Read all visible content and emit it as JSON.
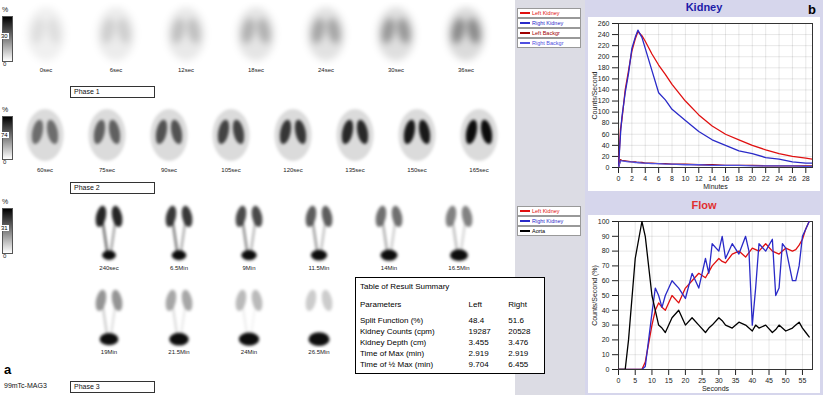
{
  "panel_a": {
    "label": "a",
    "tracer": "99mTc-MAG3",
    "phases": [
      {
        "name": "Phase 1",
        "scale": {
          "unit": "%",
          "max": 30,
          "min": 0
        },
        "frames": [
          "0sec",
          "6sec",
          "12sec",
          "18sec",
          "24sec",
          "30sec",
          "36sec"
        ]
      },
      {
        "name": "Phase 2",
        "scale": {
          "unit": "%",
          "max": 74,
          "min": 0
        },
        "frames": [
          "60sec",
          "75sec",
          "90sec",
          "105sec",
          "120sec",
          "135sec",
          "150sec",
          "165sec"
        ]
      },
      {
        "name": "Phase 3",
        "scale": {
          "unit": "%",
          "max": 31,
          "min": 0
        },
        "frames": [
          "240sec",
          "6.5Min",
          "9Min",
          "11.5Min",
          "14Min",
          "16.5Min",
          "19Min",
          "21.5Min",
          "24Min",
          "26.5Min"
        ]
      }
    ]
  },
  "panel_b": {
    "label": "b"
  },
  "table": {
    "title": "Table of Result Summary",
    "columns": [
      "Parameters",
      "Left",
      "Right"
    ],
    "rows": [
      [
        "Split Function (%)",
        "48.4",
        "51.6"
      ],
      [
        "Kidney Counts (cpm)",
        "19287",
        "20528"
      ],
      [
        "Kidney Depth (cm)",
        "3.455",
        "3.476"
      ],
      [
        "Time of Max (min)",
        "2.919",
        "2.919"
      ],
      [
        "Time of ½ Max (min)",
        "9.704",
        "6.455"
      ]
    ]
  },
  "chart_data": [
    {
      "type": "line",
      "title": "Kidney",
      "xlabel": "Minutes",
      "ylabel": "Counts/Second",
      "x": [
        0,
        0.3,
        0.5,
        1,
        1.5,
        2,
        2.5,
        2.9,
        3.5,
        4,
        5,
        6,
        7,
        8,
        10,
        12,
        14,
        16,
        18,
        20,
        22,
        24,
        26,
        28,
        29
      ],
      "series": [
        {
          "name": "Left Kidney",
          "color": "#e01010",
          "values": [
            0,
            70,
            85,
            140,
            175,
            210,
            232,
            245,
            238,
            228,
            205,
            185,
            168,
            150,
            120,
            95,
            75,
            60,
            50,
            40,
            32,
            25,
            20,
            17,
            15
          ]
        },
        {
          "name": "Right Kidney",
          "color": "#2a2ac8",
          "values": [
            0,
            60,
            90,
            135,
            170,
            215,
            235,
            248,
            235,
            215,
            175,
            135,
            122,
            105,
            85,
            65,
            50,
            40,
            30,
            25,
            18,
            15,
            10,
            8,
            8
          ]
        },
        {
          "name": "Left Backgr",
          "color": "#a00000",
          "values": [
            0,
            14,
            13,
            12,
            11,
            10,
            10,
            9,
            9,
            8,
            8,
            7,
            7,
            6,
            6,
            5,
            5,
            4,
            4,
            4,
            3,
            3,
            3,
            3,
            3
          ]
        },
        {
          "name": "Right Backgr",
          "color": "#5050e0",
          "values": [
            0,
            12,
            12,
            11,
            10,
            10,
            9,
            9,
            8,
            8,
            7,
            7,
            6,
            6,
            5,
            5,
            4,
            4,
            4,
            3,
            3,
            3,
            3,
            2,
            2
          ]
        }
      ],
      "xlim": [
        0,
        29
      ],
      "xticks": [
        0,
        2,
        4,
        6,
        8,
        10,
        12,
        14,
        16,
        18,
        20,
        22,
        24,
        26,
        28
      ],
      "ylim": [
        0,
        260
      ],
      "yticks": [
        0,
        20,
        40,
        60,
        80,
        100,
        120,
        140,
        160,
        180,
        200,
        220,
        240,
        260
      ],
      "grid": true,
      "legend": "left"
    },
    {
      "type": "line",
      "title": "Flow",
      "xlabel": "Seconds",
      "ylabel": "Counts/Second (%)",
      "x": [
        0,
        2,
        3,
        5,
        7,
        8,
        10,
        11,
        12,
        13,
        14,
        16,
        18,
        20,
        22,
        24,
        26,
        27,
        28,
        30,
        31,
        32,
        34,
        36,
        38,
        39,
        40,
        41,
        42,
        44,
        46,
        47,
        48,
        49,
        50,
        52,
        53,
        54,
        55,
        56,
        57
      ],
      "series": [
        {
          "name": "Left Kidney",
          "color": "#e01010",
          "values": [
            0,
            0,
            0,
            0,
            0,
            5,
            30,
            40,
            45,
            42,
            40,
            50,
            45,
            55,
            60,
            65,
            62,
            66,
            70,
            75,
            73,
            72,
            78,
            80,
            76,
            79,
            82,
            81,
            80,
            85,
            80,
            79,
            78,
            80,
            82,
            80,
            81,
            84,
            88,
            95,
            100
          ]
        },
        {
          "name": "Right Kidney",
          "color": "#2a2ac8",
          "values": [
            0,
            0,
            0,
            0,
            0,
            2,
            38,
            55,
            50,
            42,
            50,
            60,
            55,
            48,
            65,
            55,
            75,
            65,
            85,
            80,
            90,
            75,
            85,
            78,
            90,
            80,
            30,
            55,
            85,
            80,
            88,
            50,
            55,
            85,
            82,
            60,
            60,
            70,
            90,
            95,
            100
          ]
        },
        {
          "name": "Aorta",
          "color": "#000000",
          "values": [
            0,
            0,
            20,
            75,
            100,
            90,
            50,
            40,
            30,
            28,
            25,
            35,
            40,
            30,
            35,
            30,
            25,
            28,
            30,
            35,
            33,
            30,
            28,
            32,
            30,
            28,
            26,
            30,
            28,
            30,
            25,
            27,
            30,
            28,
            26,
            28,
            30,
            32,
            28,
            25,
            22
          ]
        }
      ],
      "xlim": [
        0,
        58
      ],
      "xticks": [
        0,
        5,
        10,
        15,
        20,
        25,
        30,
        35,
        40,
        45,
        50,
        55
      ],
      "ylim": [
        0,
        100
      ],
      "yticks": [
        0,
        10,
        20,
        30,
        40,
        50,
        60,
        70,
        80,
        90,
        100
      ],
      "grid": true,
      "legend": "left"
    }
  ]
}
